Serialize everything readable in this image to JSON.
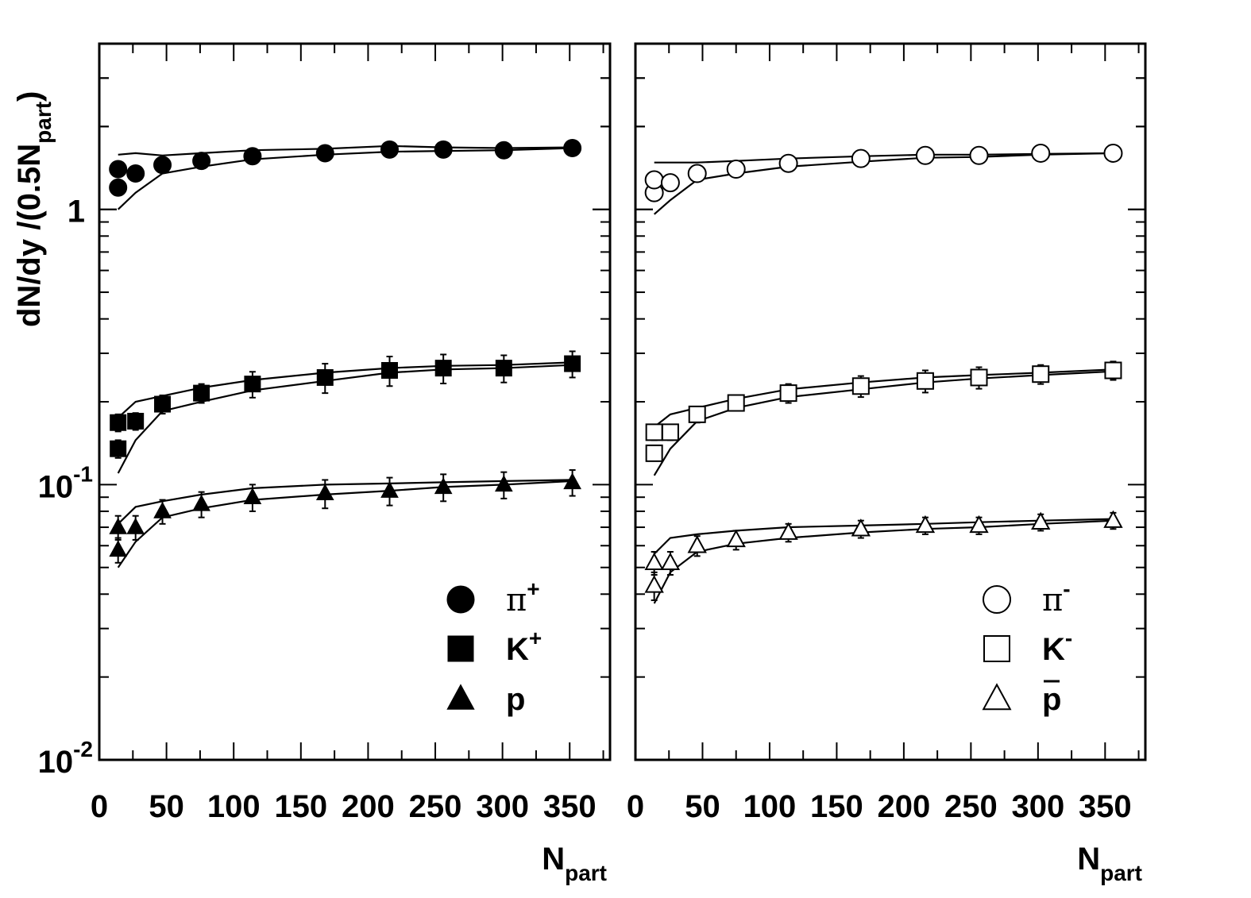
{
  "chart_data": [
    {
      "type": "scatter",
      "panel": "left",
      "yscale": "log",
      "xlim": [
        0,
        380
      ],
      "ylim": [
        0.01,
        4
      ],
      "xlabel": "N",
      "xlabel_sub": "part",
      "ylabel": "dN/dy /(0.5N",
      "ylabel_sub": "part",
      "ylabel_end": ")",
      "x_ticks": [
        "0",
        "50",
        "100",
        "150",
        "200",
        "250",
        "300",
        "350"
      ],
      "y_ticks": [
        {
          "base": "1",
          "exp": ""
        },
        {
          "base": "10",
          "exp": "-1"
        },
        {
          "base": "10",
          "exp": "-2"
        }
      ],
      "legend_position": "bottom-right",
      "series": [
        {
          "name": "π",
          "sup": "+",
          "marker": "circle",
          "filled": true,
          "x": [
            14,
            14,
            27,
            47,
            76,
            114,
            168,
            216,
            256,
            301,
            352
          ],
          "y": [
            1.2,
            1.4,
            1.35,
            1.45,
            1.5,
            1.56,
            1.6,
            1.65,
            1.65,
            1.64,
            1.67
          ],
          "err": [
            0,
            0,
            0,
            0,
            0,
            0,
            0,
            0,
            0,
            0,
            0
          ],
          "fit_upper_x": [
            14,
            27,
            47,
            76,
            114,
            168,
            216,
            256,
            301,
            352
          ],
          "fit_upper_y": [
            1.58,
            1.6,
            1.57,
            1.6,
            1.64,
            1.66,
            1.7,
            1.68,
            1.67,
            1.68
          ],
          "fit_lower_x": [
            14,
            27,
            47,
            76,
            114,
            168,
            216,
            256,
            301,
            352
          ],
          "fit_lower_y": [
            1.0,
            1.15,
            1.35,
            1.43,
            1.52,
            1.58,
            1.62,
            1.63,
            1.64,
            1.67
          ]
        },
        {
          "name": "K",
          "sup": "+",
          "marker": "square",
          "filled": true,
          "x": [
            14,
            14,
            27,
            47,
            76,
            114,
            168,
            216,
            256,
            301,
            352
          ],
          "y": [
            0.135,
            0.168,
            0.17,
            0.196,
            0.215,
            0.232,
            0.245,
            0.26,
            0.265,
            0.265,
            0.275
          ],
          "err": [
            0.01,
            0.012,
            0.012,
            0.015,
            0.017,
            0.025,
            0.03,
            0.032,
            0.032,
            0.03,
            0.03
          ],
          "fit_upper_x": [
            14,
            27,
            47,
            76,
            114,
            168,
            216,
            256,
            301,
            352
          ],
          "fit_upper_y": [
            0.175,
            0.2,
            0.21,
            0.225,
            0.24,
            0.255,
            0.265,
            0.27,
            0.272,
            0.278
          ],
          "fit_lower_x": [
            14,
            27,
            47,
            76,
            114,
            168,
            216,
            256,
            301,
            352
          ],
          "fit_lower_y": [
            0.11,
            0.145,
            0.185,
            0.2,
            0.22,
            0.238,
            0.255,
            0.262,
            0.265,
            0.272
          ]
        },
        {
          "name": "p",
          "sup": "",
          "marker": "triangle",
          "filled": true,
          "x": [
            14,
            14,
            27,
            47,
            76,
            114,
            168,
            216,
            256,
            301,
            352
          ],
          "y": [
            0.058,
            0.07,
            0.07,
            0.08,
            0.085,
            0.09,
            0.093,
            0.095,
            0.098,
            0.1,
            0.102
          ],
          "err": [
            0.006,
            0.007,
            0.007,
            0.008,
            0.009,
            0.01,
            0.011,
            0.011,
            0.011,
            0.011,
            0.011
          ],
          "fit_upper_x": [
            14,
            27,
            47,
            76,
            114,
            168,
            216,
            256,
            301,
            352
          ],
          "fit_upper_y": [
            0.072,
            0.083,
            0.087,
            0.092,
            0.097,
            0.1,
            0.101,
            0.102,
            0.103,
            0.104
          ],
          "fit_lower_x": [
            14,
            27,
            47,
            76,
            114,
            168,
            216,
            256,
            301,
            352
          ],
          "fit_lower_y": [
            0.05,
            0.062,
            0.076,
            0.082,
            0.088,
            0.092,
            0.095,
            0.098,
            0.1,
            0.103
          ]
        }
      ]
    },
    {
      "type": "scatter",
      "panel": "right",
      "yscale": "log",
      "xlim": [
        0,
        380
      ],
      "ylim": [
        0.01,
        4
      ],
      "xlabel": "N",
      "xlabel_sub": "part",
      "x_ticks": [
        "0",
        "50",
        "100",
        "150",
        "200",
        "250",
        "300",
        "350"
      ],
      "legend_position": "bottom-right",
      "series": [
        {
          "name": "π",
          "sup": "-",
          "marker": "circle",
          "filled": false,
          "overline": false,
          "x": [
            14,
            14,
            26,
            46,
            75,
            114,
            168,
            216,
            256,
            302,
            356
          ],
          "y": [
            1.15,
            1.28,
            1.25,
            1.35,
            1.4,
            1.47,
            1.53,
            1.57,
            1.57,
            1.6,
            1.6
          ],
          "err": [
            0,
            0,
            0,
            0,
            0,
            0,
            0,
            0,
            0,
            0,
            0
          ],
          "fit_upper_x": [
            14,
            26,
            46,
            75,
            114,
            168,
            216,
            256,
            302,
            356
          ],
          "fit_upper_y": [
            1.48,
            1.48,
            1.48,
            1.5,
            1.53,
            1.56,
            1.58,
            1.58,
            1.59,
            1.6
          ],
          "fit_lower_x": [
            14,
            26,
            46,
            75,
            114,
            168,
            216,
            256,
            302,
            356
          ],
          "fit_lower_y": [
            0.96,
            1.08,
            1.28,
            1.35,
            1.43,
            1.49,
            1.54,
            1.55,
            1.58,
            1.6
          ]
        },
        {
          "name": "K",
          "sup": "-",
          "marker": "square",
          "filled": false,
          "overline": false,
          "x": [
            14,
            14,
            26,
            46,
            75,
            114,
            168,
            216,
            256,
            302,
            356
          ],
          "y": [
            0.13,
            0.155,
            0.155,
            0.18,
            0.198,
            0.215,
            0.228,
            0.238,
            0.245,
            0.252,
            0.26
          ],
          "err": [
            0.008,
            0.01,
            0.01,
            0.012,
            0.012,
            0.017,
            0.02,
            0.022,
            0.022,
            0.02,
            0.02
          ],
          "fit_upper_x": [
            14,
            26,
            46,
            75,
            114,
            168,
            216,
            256,
            302,
            356
          ],
          "fit_upper_y": [
            0.162,
            0.18,
            0.19,
            0.205,
            0.222,
            0.235,
            0.245,
            0.25,
            0.255,
            0.262
          ],
          "fit_lower_x": [
            14,
            26,
            46,
            75,
            114,
            168,
            216,
            256,
            302,
            356
          ],
          "fit_lower_y": [
            0.108,
            0.135,
            0.17,
            0.19,
            0.208,
            0.222,
            0.235,
            0.243,
            0.25,
            0.258
          ]
        },
        {
          "name": "p",
          "sup": "",
          "marker": "triangle",
          "filled": false,
          "overline": true,
          "x": [
            14,
            14,
            26,
            46,
            75,
            114,
            168,
            216,
            256,
            302,
            356
          ],
          "y": [
            0.043,
            0.052,
            0.052,
            0.06,
            0.063,
            0.067,
            0.069,
            0.071,
            0.071,
            0.073,
            0.074
          ],
          "err": [
            0.005,
            0.005,
            0.005,
            0.005,
            0.005,
            0.005,
            0.005,
            0.005,
            0.005,
            0.005,
            0.005
          ],
          "fit_upper_x": [
            14,
            26,
            46,
            75,
            114,
            168,
            216,
            256,
            302,
            356
          ],
          "fit_upper_y": [
            0.056,
            0.064,
            0.066,
            0.068,
            0.07,
            0.071,
            0.072,
            0.073,
            0.074,
            0.075
          ],
          "fit_lower_x": [
            14,
            26,
            46,
            75,
            114,
            168,
            216,
            256,
            302,
            356
          ],
          "fit_lower_y": [
            0.037,
            0.048,
            0.057,
            0.061,
            0.064,
            0.067,
            0.069,
            0.07,
            0.072,
            0.074
          ]
        }
      ]
    }
  ]
}
